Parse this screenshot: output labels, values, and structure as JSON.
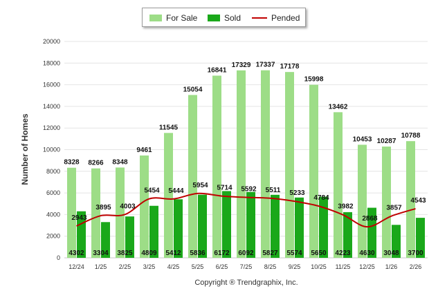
{
  "chart_data": {
    "type": "bar",
    "categories": [
      "12/24",
      "1/25",
      "2/25",
      "3/25",
      "4/25",
      "5/25",
      "6/25",
      "7/25",
      "8/25",
      "9/25",
      "10/25",
      "11/25",
      "12/25",
      "1/26",
      "2/26"
    ],
    "series": [
      {
        "name": "For Sale",
        "type": "bar",
        "color": "#9ddd87",
        "values": [
          8328,
          8266,
          8348,
          9461,
          11545,
          15054,
          16841,
          17329,
          17337,
          17178,
          15998,
          13462,
          10453,
          10287,
          10788
        ]
      },
      {
        "name": "Sold",
        "type": "bar",
        "color": "#1aa81a",
        "values": [
          4302,
          3304,
          3825,
          4809,
          5412,
          5836,
          6172,
          6092,
          5827,
          5574,
          5650,
          4223,
          4630,
          3048,
          3700
        ]
      },
      {
        "name": "Pended",
        "type": "line",
        "color": "#c00000",
        "values": [
          2943,
          3895,
          4003,
          5454,
          5444,
          5954,
          5714,
          5592,
          5511,
          5233,
          4784,
          3982,
          2868,
          3857,
          4543
        ]
      }
    ],
    "ylabel": "Number of Homes",
    "yticks": [
      0,
      2000,
      4000,
      6000,
      8000,
      10000,
      12000,
      14000,
      16000,
      18000,
      20000
    ],
    "ylim": [
      0,
      20000
    ],
    "grid": true,
    "legend": "top-center"
  },
  "footer": {
    "copyright": "Copyright ® Trendgraphix, Inc."
  }
}
